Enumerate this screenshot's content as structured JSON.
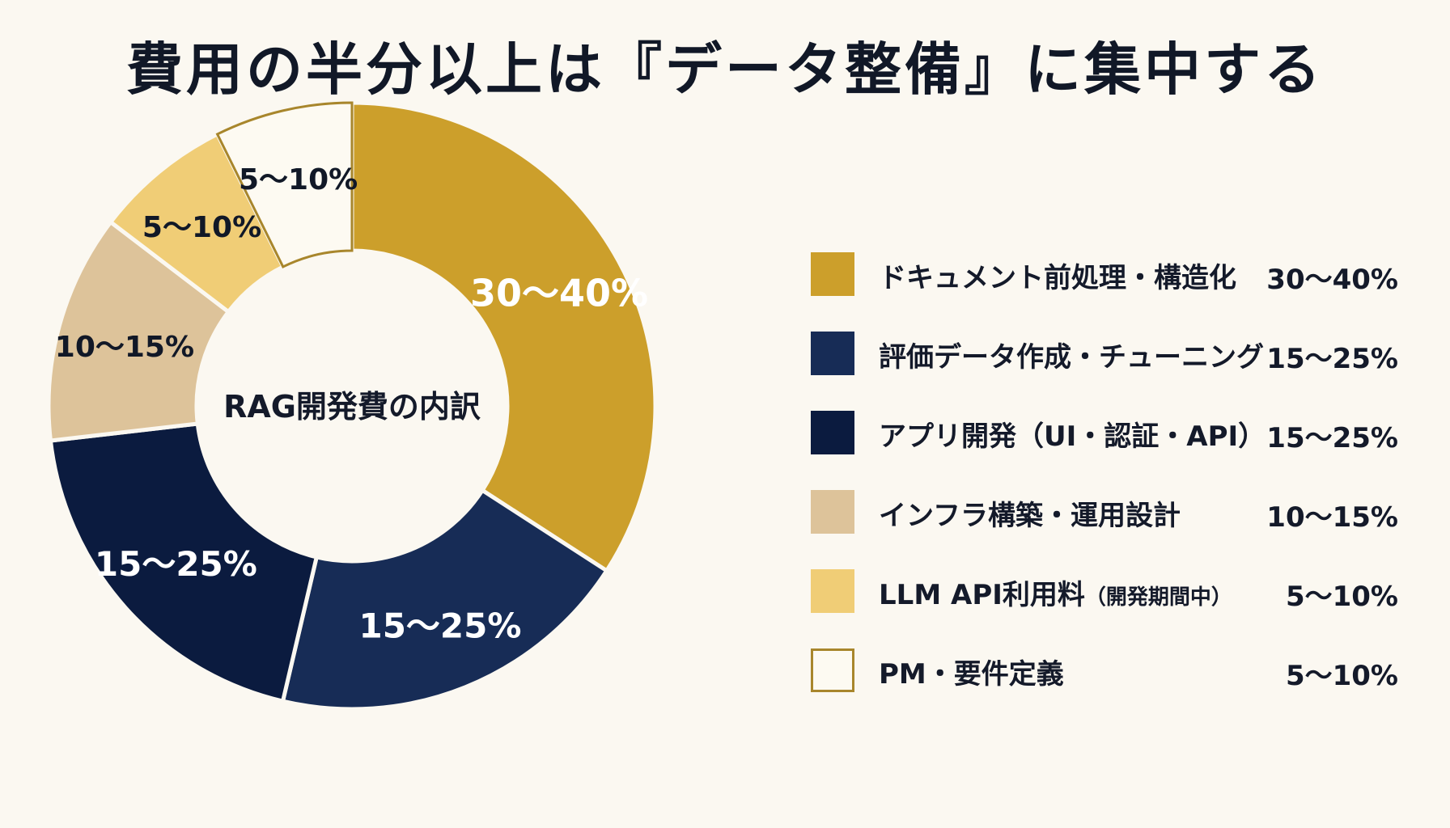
{
  "title": "費用の半分以上は『データ整備』に集中する",
  "chart_data": {
    "type": "pie",
    "center_label": "RAG開発費の内訳",
    "slices": [
      {
        "label": "ドキュメント前処理・構造化",
        "value_text": "30〜40%",
        "range": [
          30,
          40
        ],
        "color": "#cc9f2b",
        "text_color": "#ffffff",
        "outline": false
      },
      {
        "label": "評価データ作成・チューニング",
        "value_text": "15〜25%",
        "range": [
          15,
          25
        ],
        "color": "#172c56",
        "text_color": "#ffffff",
        "outline": false
      },
      {
        "label": "アプリ開発（UI・認証・API）",
        "value_text": "15〜25%",
        "range": [
          15,
          25
        ],
        "color": "#0b1b3f",
        "text_color": "#ffffff",
        "outline": false
      },
      {
        "label": "インフラ構築・運用設計",
        "value_text": "10〜15%",
        "range": [
          10,
          15
        ],
        "color": "#ddc39a",
        "text_color": "#111827",
        "outline": false
      },
      {
        "label": "LLM API利用料",
        "label_note": "（開発期間中）",
        "value_text": "5〜10%",
        "range": [
          5,
          10
        ],
        "color": "#f0cd76",
        "text_color": "#111827",
        "outline": false
      },
      {
        "label": "PM・要件定義",
        "value_text": "5〜10%",
        "range": [
          5,
          10
        ],
        "color": "#fdfaf2",
        "text_color": "#111827",
        "outline": true,
        "outline_color": "#a8862c"
      }
    ]
  }
}
